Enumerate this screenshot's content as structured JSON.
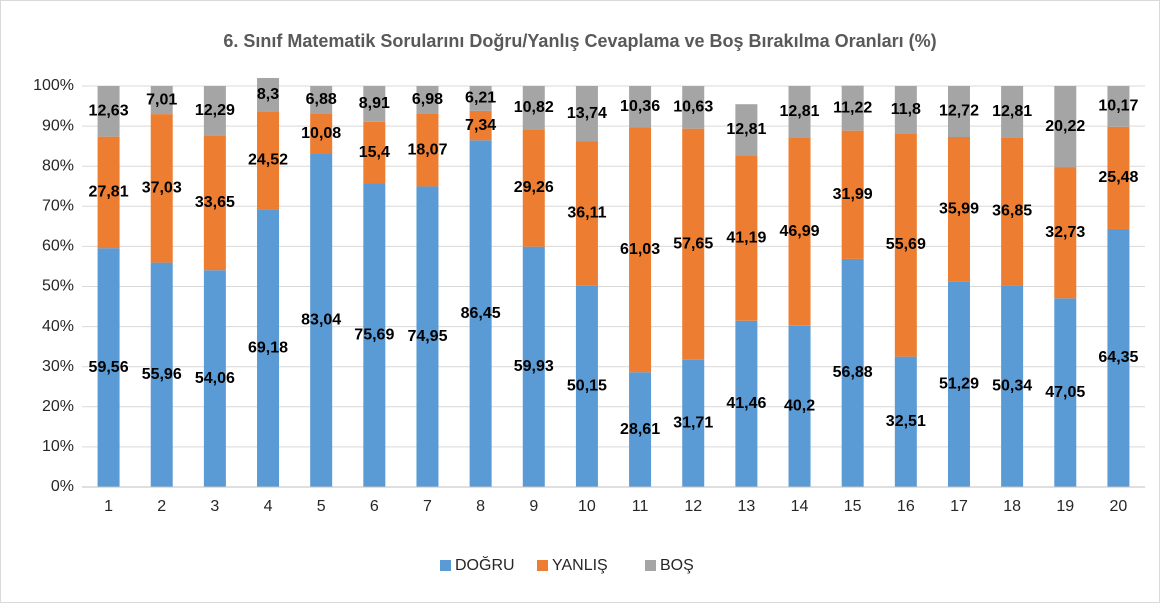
{
  "chart_data": {
    "type": "stacked_bar",
    "title": "6. Sınıf Matematik Sorularını Doğru/Yanlış Cevaplama ve Boş Bırakılma Oranları (%)",
    "categories": [
      "1",
      "2",
      "3",
      "4",
      "5",
      "6",
      "7",
      "8",
      "9",
      "10",
      "11",
      "12",
      "13",
      "14",
      "15",
      "16",
      "17",
      "18",
      "19",
      "20"
    ],
    "series": [
      {
        "name": "DOĞRU",
        "color": "#5b9bd5",
        "values": [
          59.56,
          55.96,
          54.06,
          69.18,
          83.04,
          75.69,
          74.95,
          86.45,
          59.93,
          50.15,
          28.61,
          31.71,
          41.46,
          40.2,
          56.88,
          32.51,
          51.29,
          50.34,
          47.05,
          64.35
        ],
        "value_labels": [
          "59,56",
          "55,96",
          "54,06",
          "69,18",
          "83,04",
          "75,69",
          "74,95",
          "86,45",
          "59,93",
          "50,15",
          "28,61",
          "31,71",
          "41,46",
          "40,2",
          "56,88",
          "32,51",
          "51,29",
          "50,34",
          "47,05",
          "64,35"
        ]
      },
      {
        "name": "YANLIŞ",
        "color": "#ed7d31",
        "values": [
          27.81,
          37.03,
          33.65,
          24.52,
          10.08,
          15.4,
          18.07,
          7.34,
          29.26,
          36.11,
          61.03,
          57.65,
          41.19,
          46.99,
          31.99,
          55.69,
          35.99,
          36.85,
          32.73,
          25.48
        ],
        "value_labels": [
          "27,81",
          "37,03",
          "33,65",
          "24,52",
          "10,08",
          "15,4",
          "18,07",
          "7,34",
          "29,26",
          "36,11",
          "61,03",
          "57,65",
          "41,19",
          "46,99",
          "31,99",
          "55,69",
          "35,99",
          "36,85",
          "32,73",
          "25,48"
        ]
      },
      {
        "name": "BOŞ",
        "color": "#a5a5a5",
        "values": [
          12.63,
          7.01,
          12.29,
          8.3,
          6.88,
          8.91,
          6.98,
          6.21,
          10.82,
          13.74,
          10.36,
          10.63,
          12.81,
          12.81,
          11.22,
          11.8,
          12.72,
          12.81,
          20.22,
          10.17
        ],
        "value_labels": [
          "12,63",
          "7,01",
          "12,29",
          "8,3",
          "6,88",
          "8,91",
          "6,98",
          "6,21",
          "10,82",
          "13,74",
          "10,36",
          "10,63",
          "12,81",
          "12,81",
          "11,22",
          "11,8",
          "12,72",
          "12,81",
          "20,22",
          "10,17"
        ]
      }
    ],
    "ylim": [
      0,
      100
    ],
    "yticks": [
      {
        "value": 0,
        "label": "0%"
      },
      {
        "value": 10,
        "label": "10%"
      },
      {
        "value": 20,
        "label": "20%"
      },
      {
        "value": 30,
        "label": "30%"
      },
      {
        "value": 40,
        "label": "40%"
      },
      {
        "value": 50,
        "label": "50%"
      },
      {
        "value": 60,
        "label": "60%"
      },
      {
        "value": 70,
        "label": "70%"
      },
      {
        "value": 80,
        "label": "80%"
      },
      {
        "value": 90,
        "label": "90%"
      },
      {
        "value": 100,
        "label": "100%"
      }
    ],
    "grid": true,
    "legend": "bottom"
  }
}
